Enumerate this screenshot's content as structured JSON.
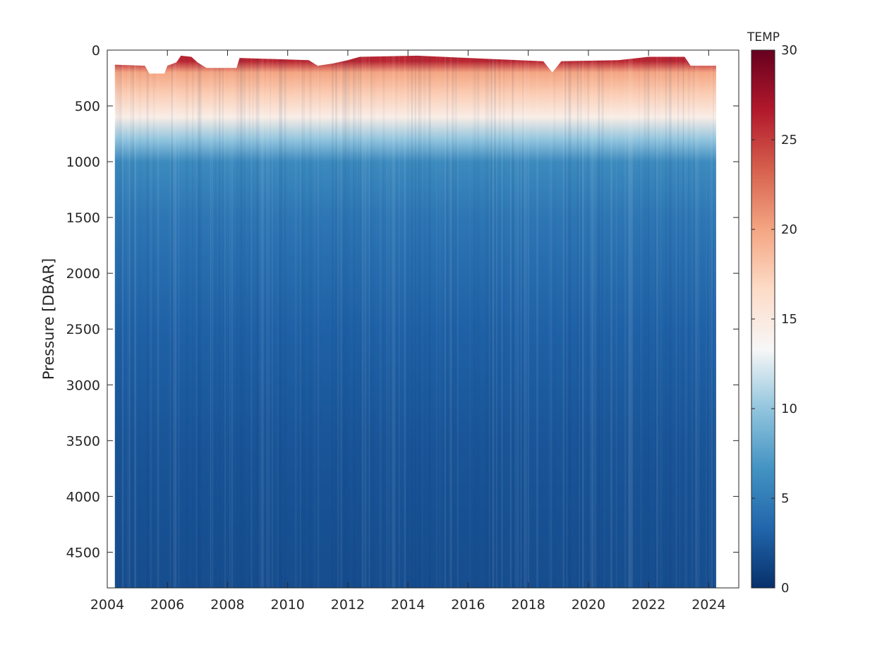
{
  "chart_data": {
    "type": "heatmap",
    "title": "",
    "xlabel": "",
    "ylabel": "Pressure [DBAR]",
    "xlim": [
      2004,
      2025
    ],
    "ylim": [
      0,
      4820
    ],
    "y_reversed": true,
    "x_ticks": [
      2004,
      2006,
      2008,
      2010,
      2012,
      2014,
      2016,
      2018,
      2020,
      2022,
      2024
    ],
    "x_tick_labels": [
      "2004",
      "2006",
      "2008",
      "2010",
      "2012",
      "2014",
      "2016",
      "2018",
      "2020",
      "2022",
      "2024"
    ],
    "y_ticks": [
      0,
      500,
      1000,
      1500,
      2000,
      2500,
      3000,
      3500,
      4000,
      4500
    ],
    "y_tick_labels": [
      "0",
      "500",
      "1000",
      "1500",
      "2000",
      "2500",
      "3000",
      "3500",
      "4000",
      "4500"
    ],
    "data_extent": {
      "time_start": 2004.25,
      "time_end": 2024.25,
      "pressure_max": 4820
    },
    "colorbar": {
      "title": "TEMP",
      "range": [
        0,
        30
      ],
      "ticks": [
        0,
        5,
        10,
        15,
        20,
        25,
        30
      ],
      "tick_labels": [
        "0",
        "5",
        "10",
        "15",
        "20",
        "25",
        "30"
      ],
      "colormap": "diverging blue-white-red",
      "colormap_stops": [
        "#08306b",
        "#2166ac",
        "#4393c3",
        "#92c5de",
        "#f7f7f7",
        "#fddbc7",
        "#f4a582",
        "#d6604d",
        "#b2182b",
        "#67001f"
      ]
    },
    "temperature_profile": [
      {
        "pressure": 100,
        "temp": 26
      },
      {
        "pressure": 200,
        "temp": 20
      },
      {
        "pressure": 400,
        "temp": 17.5
      },
      {
        "pressure": 600,
        "temp": 14.5
      },
      {
        "pressure": 800,
        "temp": 10
      },
      {
        "pressure": 1000,
        "temp": 6
      },
      {
        "pressure": 1500,
        "temp": 4.5
      },
      {
        "pressure": 2500,
        "temp": 3
      },
      {
        "pressure": 3500,
        "temp": 2.3
      },
      {
        "pressure": 4820,
        "temp": 1.8
      }
    ],
    "top_of_data": [
      {
        "year": 2004.25,
        "pressure": 130
      },
      {
        "year": 2005.25,
        "pressure": 140
      },
      {
        "year": 2005.4,
        "pressure": 210
      },
      {
        "year": 2005.9,
        "pressure": 210
      },
      {
        "year": 2006.0,
        "pressure": 140
      },
      {
        "year": 2006.3,
        "pressure": 110
      },
      {
        "year": 2006.45,
        "pressure": 50
      },
      {
        "year": 2006.8,
        "pressure": 60
      },
      {
        "year": 2007.0,
        "pressure": 110
      },
      {
        "year": 2007.3,
        "pressure": 160
      },
      {
        "year": 2008.3,
        "pressure": 160
      },
      {
        "year": 2008.4,
        "pressure": 70
      },
      {
        "year": 2010.7,
        "pressure": 90
      },
      {
        "year": 2011.0,
        "pressure": 140
      },
      {
        "year": 2011.5,
        "pressure": 120
      },
      {
        "year": 2012.0,
        "pressure": 90
      },
      {
        "year": 2012.4,
        "pressure": 60
      },
      {
        "year": 2014.3,
        "pressure": 50
      },
      {
        "year": 2016.0,
        "pressure": 70
      },
      {
        "year": 2018.5,
        "pressure": 100
      },
      {
        "year": 2018.8,
        "pressure": 200
      },
      {
        "year": 2019.1,
        "pressure": 100
      },
      {
        "year": 2021.0,
        "pressure": 90
      },
      {
        "year": 2022.0,
        "pressure": 60
      },
      {
        "year": 2023.2,
        "pressure": 60
      },
      {
        "year": 2023.4,
        "pressure": 140
      },
      {
        "year": 2024.25,
        "pressure": 140
      }
    ]
  }
}
